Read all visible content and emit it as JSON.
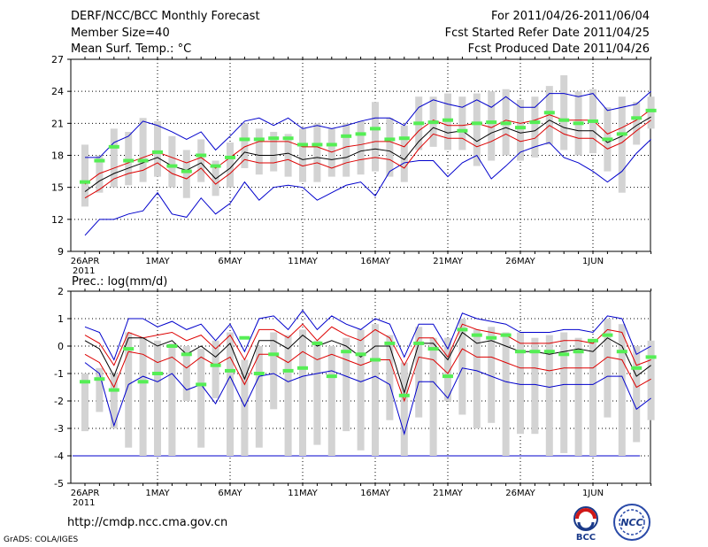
{
  "header": {
    "title": "DERF/NCC/BCC Monthly Forecast",
    "member_size": "Member Size=40",
    "variable1": "Mean Surf. Temp.: °C",
    "period": "For 2011/04/26-2011/06/04",
    "started": "Fcst Started Refer Date 2011/04/25",
    "produced": "Fcst Produced Date 2011/04/26"
  },
  "footer": {
    "url": "http://cmdp.ncc.cma.gov.cn",
    "credit": "GrADS: COLA/IGES",
    "logo1_text": "BCC",
    "logo2_text": "NCC"
  },
  "colors": {
    "envelope": "#0000cc",
    "spread": "#dd0000",
    "mean": "#000000",
    "member": "#55ee55",
    "box": "#d3d3d3",
    "grid": "#000000"
  },
  "chart_data": [
    {
      "type": "line",
      "title": "Mean Surf. Temp.: °C",
      "ylim": [
        9,
        27
      ],
      "yticks": [
        9,
        12,
        15,
        18,
        21,
        24,
        27
      ],
      "xlabels": [
        "26APR",
        "1MAY",
        "6MAY",
        "11MAY",
        "16MAY",
        "21MAY",
        "26MAY",
        "1JUN"
      ],
      "xlabel_year": "2011",
      "days": 40,
      "series": [
        {
          "name": "max",
          "values": [
            17.8,
            17.8,
            19.2,
            19.8,
            21.2,
            20.8,
            20.2,
            19.5,
            20.2,
            18.5,
            19.8,
            21.2,
            21.5,
            20.8,
            21.5,
            20.5,
            20.8,
            20.5,
            20.8,
            21.2,
            21.5,
            21.5,
            20.8,
            22.5,
            23.2,
            22.8,
            22.5,
            23.2,
            22.5,
            23.5,
            22.5,
            22.5,
            23.8,
            23.8,
            23.5,
            23.8,
            22.2,
            22.5,
            22.8,
            24.0
          ]
        },
        {
          "name": "upper",
          "values": [
            15.3,
            16.3,
            16.8,
            17.3,
            17.8,
            18.3,
            17.8,
            17.3,
            17.8,
            16.8,
            17.8,
            18.8,
            19.3,
            19.3,
            19.3,
            18.8,
            18.8,
            18.3,
            18.8,
            19.0,
            19.3,
            19.3,
            18.8,
            20.3,
            21.3,
            20.8,
            20.8,
            21.0,
            20.6,
            21.3,
            21.0,
            21.3,
            21.8,
            21.3,
            21.3,
            21.3,
            20.0,
            20.6,
            21.3,
            22.3
          ]
        },
        {
          "name": "mean",
          "values": [
            14.6,
            15.6,
            16.3,
            16.8,
            17.3,
            17.8,
            17.0,
            16.6,
            17.3,
            15.8,
            16.8,
            18.3,
            18.0,
            18.0,
            18.2,
            17.6,
            17.8,
            17.6,
            17.8,
            18.4,
            18.6,
            18.4,
            17.6,
            19.3,
            20.6,
            20.1,
            20.3,
            19.3,
            20.1,
            20.6,
            20.1,
            20.3,
            21.3,
            20.6,
            20.3,
            20.3,
            19.2,
            19.8,
            20.8,
            21.6
          ]
        },
        {
          "name": "lower",
          "values": [
            14.0,
            14.8,
            15.8,
            16.3,
            16.6,
            17.3,
            16.3,
            15.8,
            16.8,
            15.3,
            16.3,
            17.6,
            17.3,
            17.3,
            17.6,
            17.0,
            17.3,
            16.8,
            17.3,
            17.6,
            17.8,
            17.6,
            16.8,
            18.6,
            20.0,
            19.6,
            19.6,
            18.8,
            19.3,
            20.0,
            19.3,
            19.6,
            20.8,
            20.0,
            19.6,
            19.6,
            18.6,
            19.2,
            20.3,
            21.3
          ]
        },
        {
          "name": "min",
          "values": [
            10.5,
            12.0,
            12.0,
            12.5,
            12.8,
            14.5,
            12.5,
            12.2,
            14.0,
            12.5,
            13.5,
            15.5,
            13.8,
            15.0,
            15.2,
            15.0,
            13.8,
            14.5,
            15.2,
            15.5,
            14.2,
            16.5,
            17.3,
            17.5,
            17.5,
            16.0,
            17.3,
            18.0,
            15.8,
            17.0,
            18.3,
            18.8,
            19.2,
            17.8,
            17.3,
            16.5,
            15.5,
            16.5,
            18.2,
            19.5
          ]
        },
        {
          "name": "box_low",
          "values": [
            13.2,
            14.5,
            15.0,
            15.2,
            15.5,
            16.0,
            15.0,
            14.0,
            15.5,
            14.2,
            15.0,
            16.8,
            16.2,
            16.5,
            16.0,
            15.5,
            15.5,
            16.0,
            16.0,
            16.2,
            16.5,
            16.0,
            15.5,
            18.5,
            18.8,
            18.5,
            18.5,
            17.0,
            17.5,
            18.0,
            17.5,
            17.8,
            19.0,
            18.5,
            18.0,
            18.2,
            16.5,
            14.5,
            19.0,
            20.5
          ]
        },
        {
          "name": "box_high",
          "values": [
            19.0,
            18.0,
            20.5,
            20.2,
            21.5,
            21.2,
            19.8,
            18.5,
            19.5,
            17.5,
            19.2,
            21.0,
            20.5,
            20.2,
            20.0,
            20.5,
            21.0,
            20.5,
            21.0,
            21.2,
            23.0,
            21.5,
            20.8,
            23.5,
            23.5,
            23.8,
            23.5,
            23.8,
            24.0,
            24.2,
            23.2,
            23.5,
            24.5,
            25.5,
            24.0,
            24.2,
            22.5,
            23.5,
            23.0,
            23.5
          ]
        },
        {
          "name": "member",
          "values": [
            15.5,
            17.5,
            18.8,
            17.5,
            17.5,
            18.3,
            17.0,
            16.5,
            18.0,
            17.0,
            17.8,
            19.5,
            19.5,
            19.6,
            19.6,
            19.0,
            19.0,
            19.0,
            19.8,
            20.0,
            20.5,
            19.5,
            19.6,
            21.0,
            21.1,
            21.3,
            20.3,
            21.0,
            21.1,
            21.0,
            20.6,
            21.1,
            22.0,
            21.3,
            21.0,
            21.2,
            19.5,
            20.0,
            21.5,
            22.2
          ]
        }
      ]
    },
    {
      "type": "line",
      "title": "Prec.: log(mm/d)",
      "ylim": [
        -5,
        2
      ],
      "yticks": [
        -5,
        -4,
        -3,
        -2,
        -1,
        0,
        1,
        2
      ],
      "xlabels": [
        "26APR",
        "1MAY",
        "6MAY",
        "11MAY",
        "16MAY",
        "21MAY",
        "26MAY",
        "1JUN"
      ],
      "xlabel_year": "2011",
      "days": 40,
      "floor": -4,
      "series": [
        {
          "name": "max",
          "values": [
            0.7,
            0.5,
            -0.5,
            1.0,
            1.0,
            0.7,
            0.9,
            0.6,
            0.8,
            0.2,
            0.8,
            -0.2,
            1.0,
            1.1,
            0.6,
            1.3,
            0.6,
            1.1,
            0.8,
            0.6,
            1.0,
            0.8,
            -0.4,
            0.8,
            0.8,
            -0.1,
            1.2,
            1.0,
            0.9,
            0.8,
            0.5,
            0.5,
            0.5,
            0.6,
            0.6,
            0.5,
            1.1,
            1.0,
            -0.3,
            0.0
          ]
        },
        {
          "name": "upper",
          "values": [
            0.4,
            0.1,
            -0.7,
            0.5,
            0.3,
            0.4,
            0.5,
            0.2,
            0.4,
            -0.1,
            0.4,
            -0.5,
            0.6,
            0.6,
            0.3,
            0.8,
            0.2,
            0.7,
            0.4,
            0.2,
            0.6,
            0.3,
            -0.7,
            0.3,
            0.3,
            -0.4,
            0.8,
            0.6,
            0.5,
            0.4,
            0.1,
            0.1,
            0.1,
            0.2,
            0.2,
            0.1,
            0.6,
            0.5,
            -0.7,
            -0.5
          ]
        },
        {
          "name": "mean",
          "values": [
            0.2,
            -0.1,
            -1.1,
            0.3,
            0.3,
            0.0,
            0.2,
            -0.3,
            0.0,
            -0.4,
            0.1,
            -1.2,
            0.2,
            0.2,
            -0.1,
            0.4,
            0.0,
            0.2,
            0.0,
            -0.4,
            0.0,
            0.0,
            -1.7,
            0.1,
            0.1,
            -0.5,
            0.5,
            0.1,
            0.2,
            0.0,
            -0.2,
            -0.2,
            -0.3,
            -0.2,
            -0.1,
            -0.2,
            0.3,
            0.0,
            -1.1,
            -0.7
          ]
        },
        {
          "name": "lower",
          "values": [
            -0.3,
            -0.6,
            -1.5,
            -0.2,
            -0.3,
            -0.6,
            -0.4,
            -0.8,
            -0.4,
            -0.7,
            -0.4,
            -1.4,
            -0.3,
            -0.3,
            -0.6,
            -0.2,
            -0.5,
            -0.3,
            -0.5,
            -0.7,
            -0.5,
            -0.5,
            -2.0,
            -0.4,
            -0.5,
            -1.0,
            -0.1,
            -0.4,
            -0.4,
            -0.6,
            -0.8,
            -0.8,
            -0.9,
            -0.8,
            -0.8,
            -0.8,
            -0.4,
            -0.5,
            -1.5,
            -1.2
          ]
        },
        {
          "name": "min",
          "values": [
            -0.6,
            -1.0,
            -2.9,
            -1.4,
            -1.1,
            -1.3,
            -1.0,
            -1.6,
            -1.4,
            -2.1,
            -1.1,
            -2.2,
            -1.1,
            -1.0,
            -1.3,
            -1.1,
            -1.0,
            -0.9,
            -1.1,
            -1.3,
            -1.1,
            -1.4,
            -3.2,
            -1.3,
            -1.3,
            -1.9,
            -0.8,
            -0.9,
            -1.1,
            -1.3,
            -1.4,
            -1.4,
            -1.5,
            -1.4,
            -1.4,
            -1.4,
            -1.1,
            -1.1,
            -2.3,
            -1.9
          ]
        },
        {
          "name": "box_low",
          "values": [
            -3.1,
            -2.4,
            -3.0,
            -3.7,
            -4.0,
            -4.0,
            -4.0,
            -2.0,
            -3.7,
            -1.9,
            -4.0,
            -4.0,
            -3.7,
            -2.3,
            -4.0,
            -4.0,
            -3.6,
            -4.0,
            -3.1,
            -3.8,
            -4.0,
            -2.7,
            -4.0,
            -2.6,
            -4.0,
            -2.0,
            -2.5,
            -3.0,
            -2.8,
            -4.0,
            -3.2,
            -3.2,
            -4.0,
            -3.9,
            -4.0,
            -4.0,
            -2.6,
            -4.0,
            -3.5,
            -2.7
          ]
        },
        {
          "name": "box_high",
          "values": [
            -1.0,
            -0.8,
            -1.0,
            0.5,
            0.3,
            0.2,
            0.1,
            0.0,
            -0.1,
            0.2,
            0.5,
            -0.5,
            0.0,
            0.5,
            0.4,
            0.6,
            0.2,
            0.0,
            0.3,
            0.6,
            0.8,
            0.4,
            -0.6,
            0.7,
            0.3,
            0.3,
            1.0,
            0.6,
            0.7,
            0.5,
            0.5,
            0.3,
            0.4,
            0.5,
            0.3,
            0.2,
            1.0,
            0.8,
            0.0,
            0.2
          ]
        },
        {
          "name": "member",
          "values": [
            -1.3,
            -1.2,
            -1.6,
            -0.1,
            -1.3,
            -1.0,
            0.0,
            -0.3,
            -1.4,
            -0.7,
            -0.9,
            0.3,
            -1.0,
            -0.3,
            -0.9,
            -0.8,
            0.1,
            -1.1,
            -0.2,
            -0.3,
            -0.5,
            0.1,
            -1.8,
            0.1,
            -0.1,
            -1.1,
            0.6,
            0.4,
            0.3,
            0.4,
            -0.2,
            -0.2,
            -0.2,
            -0.3,
            -0.2,
            0.2,
            0.4,
            -0.2,
            -0.8,
            -0.4
          ]
        }
      ]
    }
  ]
}
